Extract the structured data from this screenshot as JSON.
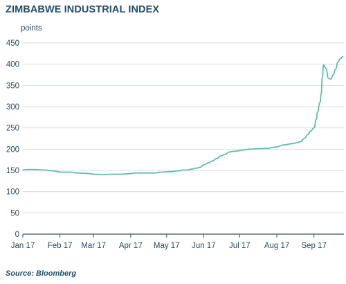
{
  "chart_data": {
    "type": "line",
    "title": "ZIMBABWE INDUSTRIAL INDEX",
    "ylabel": "points",
    "source": "Source: Bloomberg",
    "ylim": [
      0,
      450
    ],
    "yticks": [
      0,
      50,
      100,
      150,
      200,
      250,
      300,
      350,
      400,
      450
    ],
    "xlim": [
      "2017-01-01",
      "2017-09-26"
    ],
    "xticks": [
      {
        "date": "2017-01-01",
        "label": "Jan 17"
      },
      {
        "date": "2017-02-01",
        "label": "Feb 17"
      },
      {
        "date": "2017-03-01",
        "label": "Mar 17"
      },
      {
        "date": "2017-04-01",
        "label": "Apr 17"
      },
      {
        "date": "2017-05-01",
        "label": "May 17"
      },
      {
        "date": "2017-06-01",
        "label": "Jun 17"
      },
      {
        "date": "2017-07-01",
        "label": "Jul 17"
      },
      {
        "date": "2017-08-01",
        "label": "Aug 17"
      },
      {
        "date": "2017-09-01",
        "label": "Sep 17"
      }
    ],
    "grid": true,
    "line_color": "#5dbfa5",
    "series": [
      {
        "points": [
          [
            "2017-01-01",
            151
          ],
          [
            "2017-01-05",
            152
          ],
          [
            "2017-01-12",
            152
          ],
          [
            "2017-01-19",
            151
          ],
          [
            "2017-01-26",
            149
          ],
          [
            "2017-02-02",
            146
          ],
          [
            "2017-02-09",
            146
          ],
          [
            "2017-02-16",
            144
          ],
          [
            "2017-02-23",
            143
          ],
          [
            "2017-03-02",
            141
          ],
          [
            "2017-03-09",
            140
          ],
          [
            "2017-03-16",
            141
          ],
          [
            "2017-03-23",
            141
          ],
          [
            "2017-03-30",
            142
          ],
          [
            "2017-04-06",
            144
          ],
          [
            "2017-04-13",
            144
          ],
          [
            "2017-04-20",
            144
          ],
          [
            "2017-04-27",
            146
          ],
          [
            "2017-05-04",
            147
          ],
          [
            "2017-05-11",
            149
          ],
          [
            "2017-05-15",
            151
          ],
          [
            "2017-05-18",
            151
          ],
          [
            "2017-05-22",
            153
          ],
          [
            "2017-05-25",
            155
          ],
          [
            "2017-05-29",
            157
          ],
          [
            "2017-06-01",
            163
          ],
          [
            "2017-06-05",
            168
          ],
          [
            "2017-06-08",
            172
          ],
          [
            "2017-06-12",
            178
          ],
          [
            "2017-06-15",
            184
          ],
          [
            "2017-06-19",
            188
          ],
          [
            "2017-06-22",
            193
          ],
          [
            "2017-06-26",
            195
          ],
          [
            "2017-06-30",
            196
          ],
          [
            "2017-07-03",
            198
          ],
          [
            "2017-07-10",
            200
          ],
          [
            "2017-07-17",
            201
          ],
          [
            "2017-07-24",
            202
          ],
          [
            "2017-07-31",
            205
          ],
          [
            "2017-08-07",
            210
          ],
          [
            "2017-08-14",
            213
          ],
          [
            "2017-08-18",
            215
          ],
          [
            "2017-08-21",
            218
          ],
          [
            "2017-08-24",
            225
          ],
          [
            "2017-08-27",
            235
          ],
          [
            "2017-08-29",
            242
          ],
          [
            "2017-09-01",
            250
          ],
          [
            "2017-09-03",
            270
          ],
          [
            "2017-09-04",
            288
          ],
          [
            "2017-09-06",
            310
          ],
          [
            "2017-09-07",
            330
          ],
          [
            "2017-09-08",
            370
          ],
          [
            "2017-09-09",
            398
          ],
          [
            "2017-09-11",
            390
          ],
          [
            "2017-09-13",
            367
          ],
          [
            "2017-09-15",
            365
          ],
          [
            "2017-09-17",
            375
          ],
          [
            "2017-09-19",
            388
          ],
          [
            "2017-09-21",
            405
          ],
          [
            "2017-09-23",
            413
          ],
          [
            "2017-09-25",
            418
          ]
        ]
      }
    ]
  }
}
